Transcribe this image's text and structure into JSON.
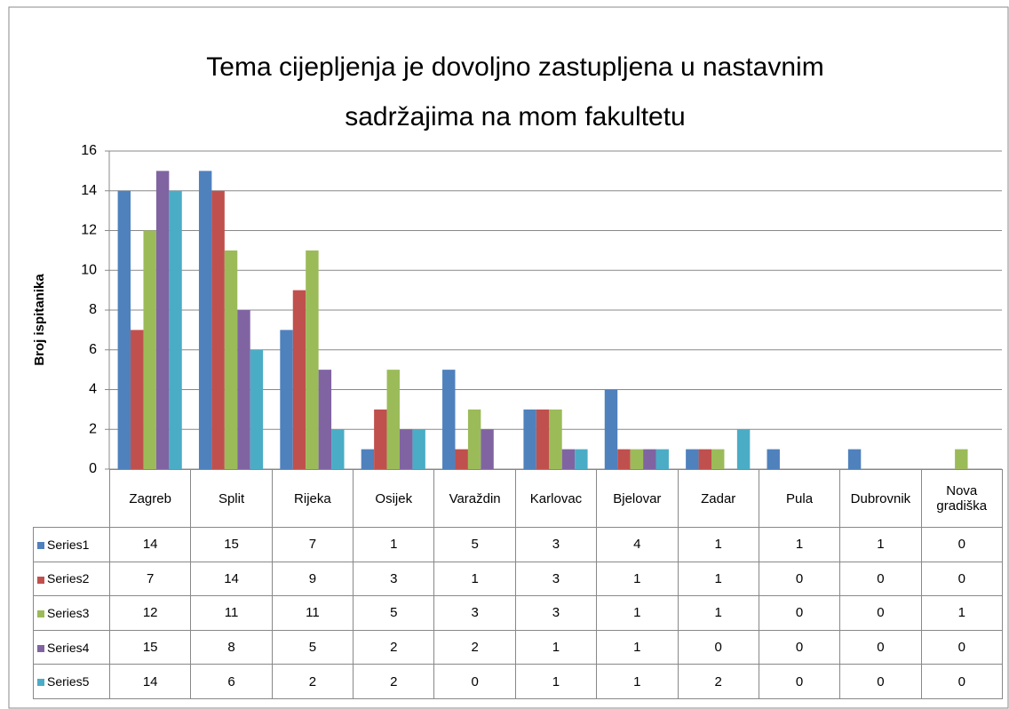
{
  "chart_data": {
    "type": "bar",
    "title": "Tema cijepljenja je dovoljno zastupljena u nastavnim sadržajima na mom fakultetu",
    "ylabel": "Broj ispitanika",
    "categories": [
      "Zagreb",
      "Split",
      "Rijeka",
      "Osijek",
      "Varaždin",
      "Karlovac",
      "Bjelovar",
      "Zadar",
      "Pula",
      "Dubrovnik",
      "Nova gradiška"
    ],
    "series": [
      {
        "name": "Series1",
        "color": "#4f81bd",
        "values": [
          14,
          15,
          7,
          1,
          5,
          3,
          4,
          1,
          1,
          1,
          0
        ]
      },
      {
        "name": "Series2",
        "color": "#c0504d",
        "values": [
          7,
          14,
          9,
          3,
          1,
          3,
          1,
          1,
          0,
          0,
          0
        ]
      },
      {
        "name": "Series3",
        "color": "#9bbb59",
        "values": [
          12,
          11,
          11,
          5,
          3,
          3,
          1,
          1,
          0,
          0,
          1
        ]
      },
      {
        "name": "Series4",
        "color": "#8064a2",
        "values": [
          15,
          8,
          5,
          2,
          2,
          1,
          1,
          0,
          0,
          0,
          0
        ]
      },
      {
        "name": "Series5",
        "color": "#4bacc6",
        "values": [
          14,
          6,
          2,
          2,
          0,
          1,
          1,
          2,
          0,
          0,
          0
        ]
      }
    ],
    "ylim": [
      0,
      16
    ],
    "yticks": [
      0,
      2,
      4,
      6,
      8,
      10,
      12,
      14,
      16
    ],
    "grid": true
  }
}
